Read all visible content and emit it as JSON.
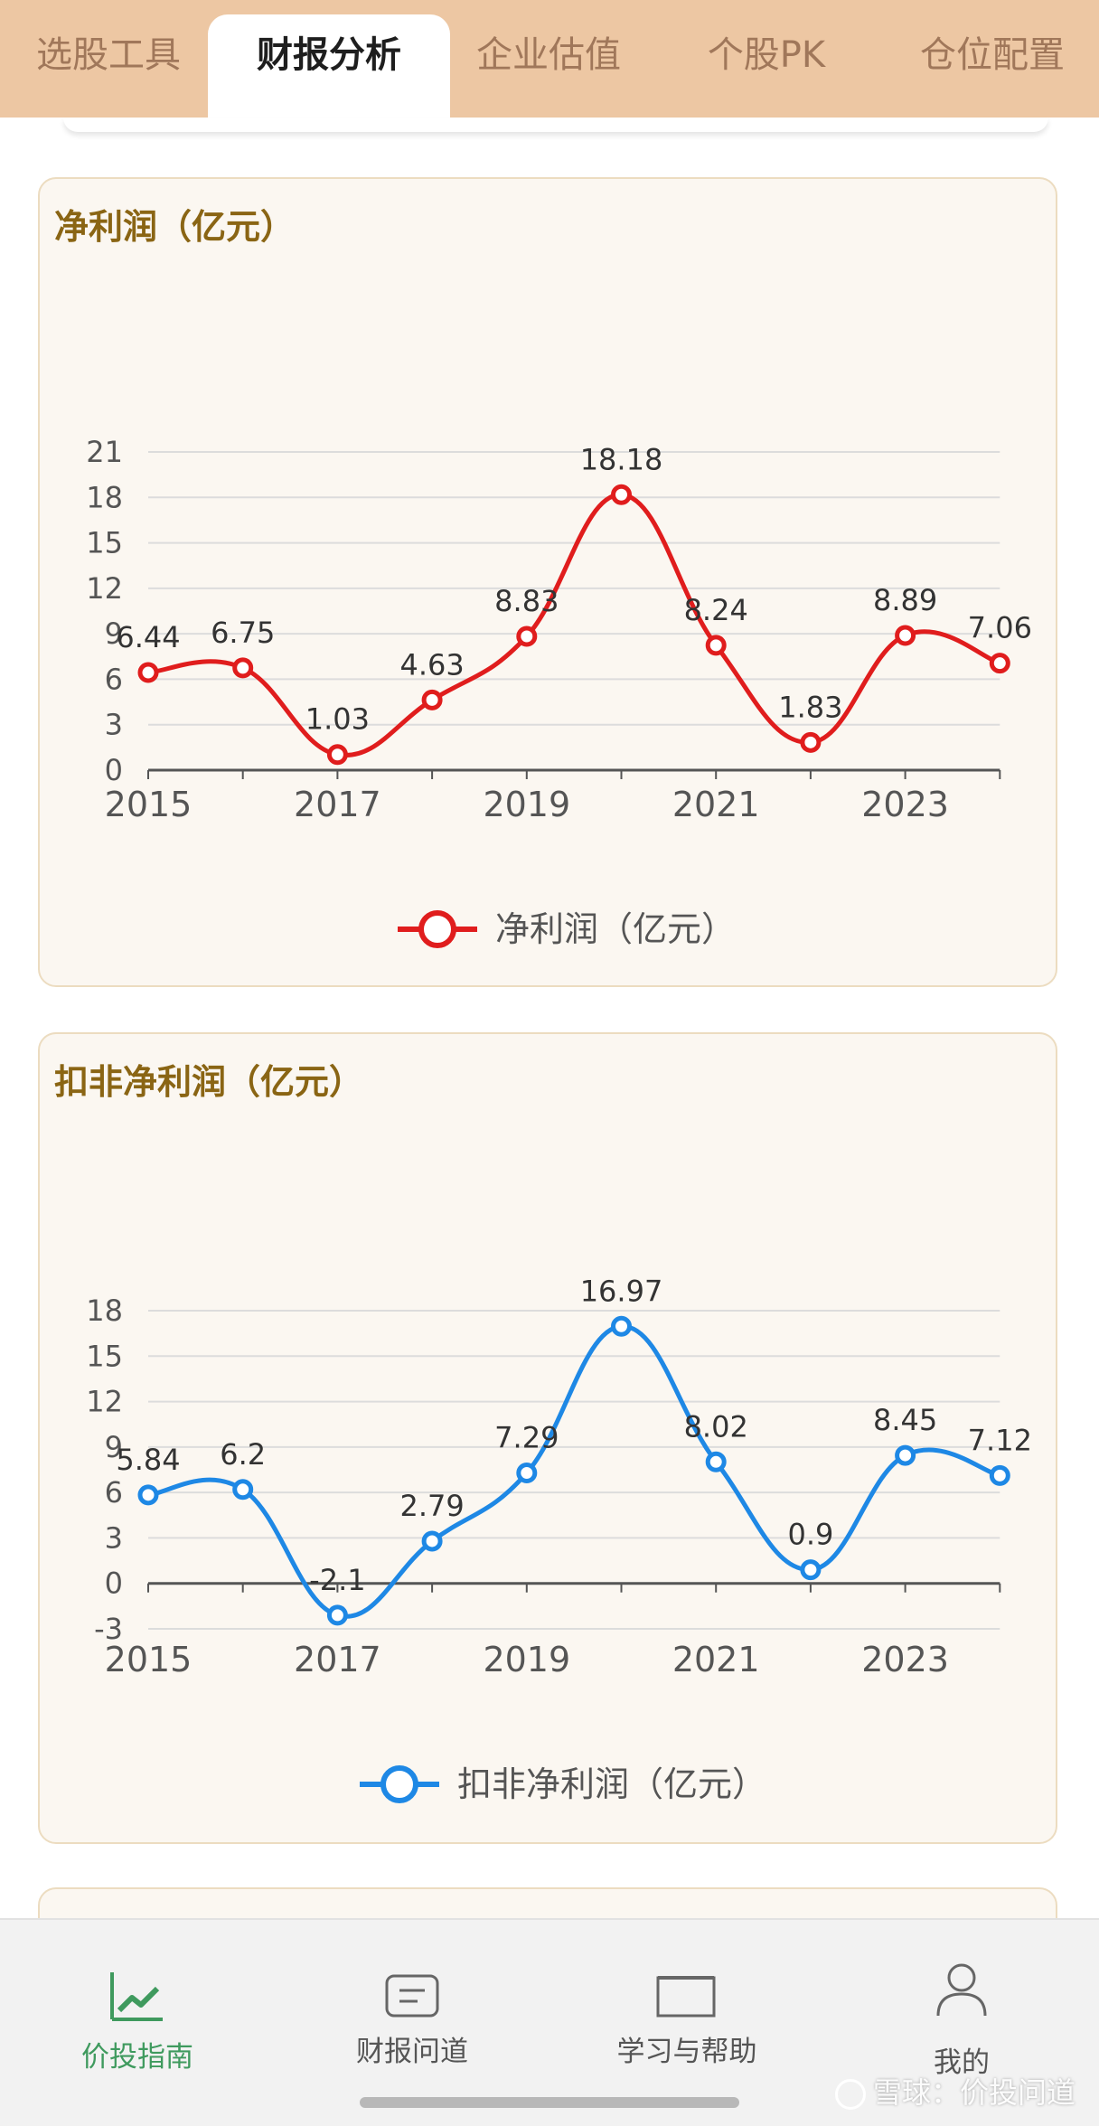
{
  "tabs": [
    {
      "label": "选股工具",
      "active": false
    },
    {
      "label": "财报分析",
      "active": true
    },
    {
      "label": "企业估值",
      "active": false
    },
    {
      "label": "个股PK",
      "active": false
    },
    {
      "label": "仓位配置",
      "active": false
    }
  ],
  "cards": [
    {
      "title": "净利润（亿元）",
      "chart_data": {
        "type": "line",
        "x": [
          2015,
          2016,
          2017,
          2018,
          2019,
          2020,
          2021,
          2022,
          2023,
          2024
        ],
        "x_tick_labels": [
          "2015",
          "2017",
          "2019",
          "2021",
          "2023"
        ],
        "y_ticks": [
          0,
          3,
          6,
          9,
          12,
          15,
          18,
          21
        ],
        "ylim": [
          0,
          21
        ],
        "series": [
          {
            "name": "净利润（亿元）",
            "color": "#e01d1d",
            "values": [
              6.44,
              6.75,
              1.03,
              4.63,
              8.83,
              18.18,
              8.24,
              1.83,
              8.89,
              7.06
            ],
            "labels": [
              "6.44",
              "6.75",
              "1.03",
              "4.63",
              "8.83",
              "18.18",
              "8.24",
              "1.83",
              "8.89",
              "7.06"
            ]
          }
        ],
        "grid": true,
        "legend": "bottom-center"
      }
    },
    {
      "title": "扣非净利润（亿元）",
      "chart_data": {
        "type": "line",
        "x": [
          2015,
          2016,
          2017,
          2018,
          2019,
          2020,
          2021,
          2022,
          2023,
          2024
        ],
        "x_tick_labels": [
          "2015",
          "2017",
          "2019",
          "2021",
          "2023"
        ],
        "y_ticks": [
          -3,
          0,
          3,
          6,
          9,
          12,
          15,
          18
        ],
        "ylim": [
          -3,
          18
        ],
        "series": [
          {
            "name": "扣非净利润（亿元）",
            "color": "#1e88e5",
            "values": [
              5.84,
              6.2,
              -2.1,
              2.79,
              7.29,
              16.97,
              8.02,
              0.9,
              8.45,
              7.12
            ],
            "labels": [
              "5.84",
              "6.2",
              "-2.1",
              "2.79",
              "7.29",
              "16.97",
              "8.02",
              "0.9",
              "8.45",
              "7.12"
            ]
          }
        ],
        "grid": true,
        "legend": "bottom-center"
      }
    }
  ],
  "bottom_nav": [
    {
      "label": "价投指南",
      "icon": "trend-chart-icon",
      "active": true
    },
    {
      "label": "财报问道",
      "icon": "message-icon",
      "active": false
    },
    {
      "label": "学习与帮助",
      "icon": "book-icon",
      "active": false
    },
    {
      "label": "我的",
      "icon": "user-icon",
      "active": false
    }
  ],
  "watermark": "雪球：价投问道"
}
